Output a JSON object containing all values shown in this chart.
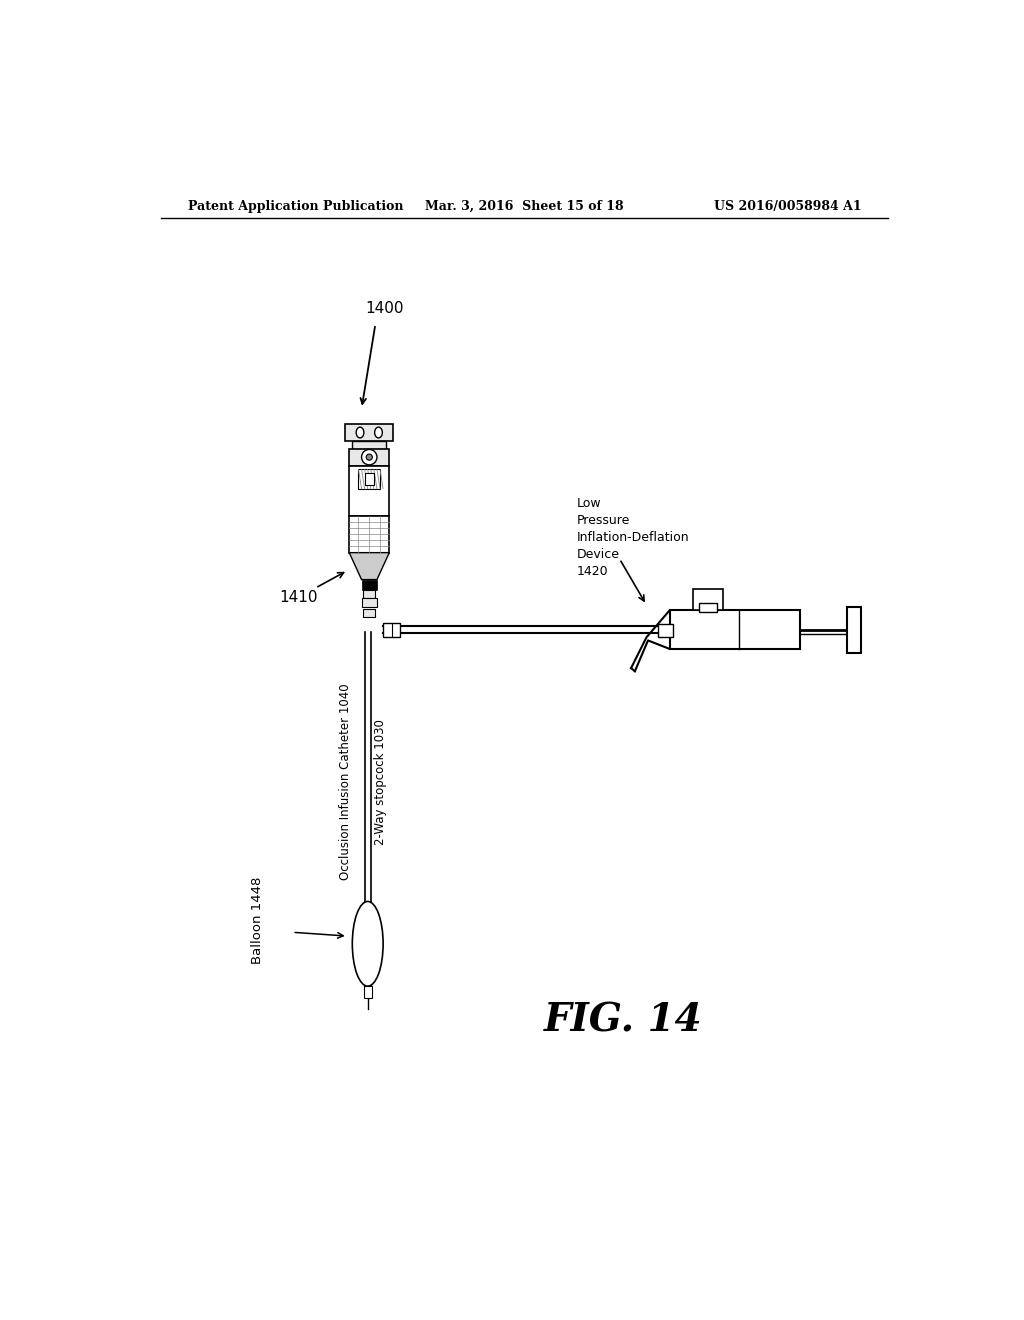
{
  "bg_color": "#ffffff",
  "header_left": "Patent Application Publication",
  "header_mid": "Mar. 3, 2016  Sheet 15 of 18",
  "header_right": "US 2016/0058984 A1",
  "fig_label": "FIG. 14",
  "line_color": "#000000",
  "text_color": "#000000",
  "gray_light": "#e8e8e8",
  "gray_mid": "#cccccc",
  "gray_dark": "#888888",
  "label_1400": "1400",
  "label_1410": "1410",
  "label_1420_lines": [
    "Low",
    "Pressure",
    "Inflation-Deflation",
    "Device",
    "1420"
  ],
  "label_1030": "2-Way stopcock 1030",
  "label_1040": "Occlusion Infusion Catheter 1040",
  "label_1448": "Balloon 1448"
}
